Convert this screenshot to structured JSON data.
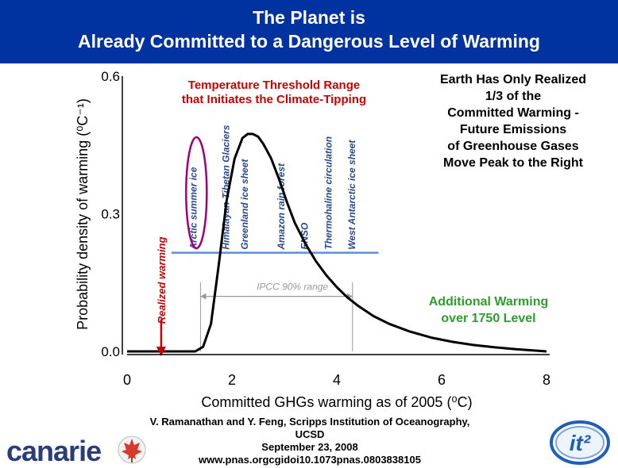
{
  "slide": {
    "title_line1": "The Planet is",
    "title_line2": "Already Committed to a Dangerous Level of Warming",
    "threshold_heading_line1": "Temperature Threshold Range",
    "threshold_heading_line2": "that Initiates the Climate-Tipping",
    "right_note_lines": [
      "Earth Has Only Realized",
      "1/3 of the",
      "Committed Warming -",
      "Future Emissions",
      "of Greenhouse Gases",
      "Move Peak to the Right"
    ],
    "additional_line1": "Additional Warming",
    "additional_line2": "over 1750 Level",
    "citation_line1": "V. Ramanathan and Y. Feng, Scripps Institution of Oceanography, UCSD",
    "citation_line2": "September 23, 2008",
    "citation_line3": "www.pnas.orgcgidoi10.1073pnas.0803838105",
    "canarie_logo": "canarie",
    "it2_logo": "it²",
    "colors": {
      "title_bg": "#0033a0",
      "curve": "#000000",
      "threshold_bar": "#5b8fd6",
      "realized": "#cc0000",
      "oval": "#a0007a",
      "additional": "#2d9e2d"
    }
  },
  "chart_data": {
    "type": "line",
    "title": "",
    "xlabel": "Committed GHGs warming as of 2005 (⁰C)",
    "ylabel": "Probability density of warming (⁰C⁻¹)",
    "xlim": [
      0,
      8
    ],
    "ylim": [
      0,
      0.6
    ],
    "xticks": [
      "0",
      "2",
      "4",
      "6",
      "8"
    ],
    "yticks": [
      "0.0",
      "0.3",
      "0.6"
    ],
    "series": [
      {
        "name": "probability density",
        "x": [
          1.1,
          1.3,
          1.45,
          1.6,
          1.75,
          1.9,
          2.05,
          2.2,
          2.3,
          2.4,
          2.5,
          2.6,
          2.75,
          2.9,
          3.05,
          3.2,
          3.4,
          3.6,
          3.8,
          4.0,
          4.2,
          4.4,
          4.7,
          5.0,
          5.4,
          5.8,
          6.2,
          6.6,
          7.0,
          7.4,
          8.0
        ],
        "y": [
          0.0,
          0.0,
          0.01,
          0.06,
          0.19,
          0.33,
          0.42,
          0.465,
          0.474,
          0.474,
          0.468,
          0.452,
          0.42,
          0.375,
          0.325,
          0.28,
          0.235,
          0.197,
          0.166,
          0.14,
          0.118,
          0.1,
          0.077,
          0.06,
          0.043,
          0.03,
          0.021,
          0.014,
          0.009,
          0.005,
          0.0
        ]
      }
    ],
    "realized_warming": {
      "label": "Realized warming",
      "x": 0.65
    },
    "threshold_range": {
      "x_start": 1.3,
      "x_end": 4.4,
      "y": 0.215
    },
    "tipping_elements": [
      {
        "label": "Arctic summer ice",
        "x": 1.55
      },
      {
        "label": "Himalayan-Tibetan Glaciers",
        "x": 1.95
      },
      {
        "label": "Greenland ice sheet",
        "x": 2.3
      },
      {
        "label": "Amazon rain forest",
        "x": 3.0
      },
      {
        "label": "ENSO",
        "x": 3.45
      },
      {
        "label": "Thermohaline circulation",
        "x": 3.9
      },
      {
        "label": "West Antarctic ice sheet",
        "x": 4.35
      }
    ],
    "ipcc_range": {
      "label": "IPCC 90% range",
      "x_start": 1.4,
      "x_end": 4.3,
      "y": 0.12
    }
  }
}
